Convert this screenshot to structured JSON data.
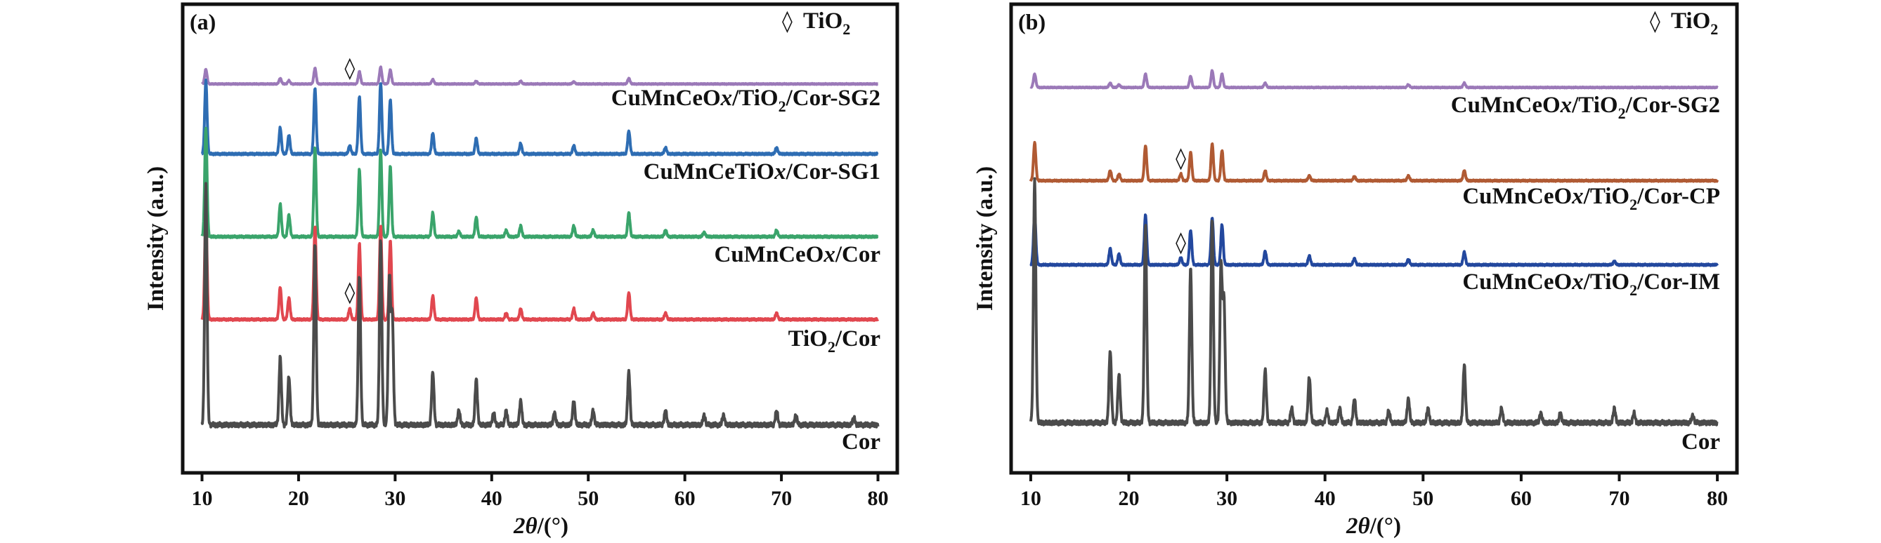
{
  "figure": {
    "xlabel_italic": "2θ",
    "xlabel_unit": "/(°)",
    "ylabel": "Intensity (a.u.)",
    "marker_symbol": "◊",
    "legend_text": "TiO",
    "legend_sub": "2"
  },
  "chart_data": [
    {
      "type": "line",
      "panel": "(a)",
      "xlim": [
        8,
        82
      ],
      "x_ticks": [
        10,
        20,
        30,
        40,
        50,
        60,
        70,
        80
      ],
      "xlabel": "2θ/(°)",
      "ylabel": "Intensity (a.u.)",
      "y_ticks": false,
      "grid": false,
      "legend": {
        "marker": "◊",
        "label": "TiO2",
        "position": "top-right"
      },
      "peaks_2theta": [
        10.4,
        18.1,
        19.0,
        21.7,
        26.3,
        28.5,
        29.4,
        29.7,
        33.9,
        36.6,
        38.4,
        40.2,
        41.5,
        43.0,
        46.5,
        48.5,
        50.5,
        54.2,
        58.0,
        62.0,
        64.0,
        69.5,
        71.5,
        77.5
      ],
      "tio2_markers": [
        {
          "series": "CuMnCeOx/TiO2/Cor-SG2",
          "x": 25.3
        },
        {
          "series": "TiO2/Cor",
          "x": 25.3
        }
      ],
      "series": [
        {
          "name": "CuMnCeOx/TiO2/Cor-SG2",
          "color": "#9b79b8",
          "label_parts": [
            [
              "CuMnCeO",
              ""
            ],
            [
              "x",
              "i"
            ],
            [
              "/TiO",
              ""
            ],
            [
              "2",
              "s"
            ],
            [
              "/Cor-SG2",
              ""
            ]
          ],
          "peaks": [
            {
              "x": 10.4,
              "h": 0.26
            },
            {
              "x": 18.1,
              "h": 0.1
            },
            {
              "x": 19.0,
              "h": 0.06
            },
            {
              "x": 21.7,
              "h": 0.28
            },
            {
              "x": 26.3,
              "h": 0.22
            },
            {
              "x": 28.5,
              "h": 0.3
            },
            {
              "x": 29.5,
              "h": 0.25
            },
            {
              "x": 33.9,
              "h": 0.08
            },
            {
              "x": 38.4,
              "h": 0.05
            },
            {
              "x": 43.0,
              "h": 0.05
            },
            {
              "x": 48.5,
              "h": 0.04
            },
            {
              "x": 54.2,
              "h": 0.1
            }
          ]
        },
        {
          "name": "CuMnCeTiOx/Cor-SG1",
          "color": "#2e6db3",
          "label_parts": [
            [
              "CuMnCeTiO",
              ""
            ],
            [
              "x",
              "i"
            ],
            [
              "/Cor-SG1",
              ""
            ]
          ],
          "peaks": [
            {
              "x": 10.4,
              "h": 0.7
            },
            {
              "x": 18.1,
              "h": 0.25
            },
            {
              "x": 19.0,
              "h": 0.18
            },
            {
              "x": 21.7,
              "h": 0.63
            },
            {
              "x": 25.3,
              "h": 0.08
            },
            {
              "x": 26.3,
              "h": 0.55
            },
            {
              "x": 28.5,
              "h": 0.68
            },
            {
              "x": 29.5,
              "h": 0.52
            },
            {
              "x": 33.9,
              "h": 0.2
            },
            {
              "x": 38.4,
              "h": 0.15
            },
            {
              "x": 43.0,
              "h": 0.1
            },
            {
              "x": 48.5,
              "h": 0.08
            },
            {
              "x": 54.2,
              "h": 0.22
            },
            {
              "x": 58.0,
              "h": 0.06
            },
            {
              "x": 69.5,
              "h": 0.06
            }
          ]
        },
        {
          "name": "CuMnCeOx/Cor",
          "color": "#3aa46b",
          "label_parts": [
            [
              "CuMnCeO",
              ""
            ],
            [
              "x",
              "i"
            ],
            [
              "/Cor",
              ""
            ]
          ],
          "peaks": [
            {
              "x": 10.4,
              "h": 1.0
            },
            {
              "x": 18.1,
              "h": 0.3
            },
            {
              "x": 19.0,
              "h": 0.2
            },
            {
              "x": 21.7,
              "h": 0.82
            },
            {
              "x": 26.3,
              "h": 0.62
            },
            {
              "x": 28.5,
              "h": 0.8
            },
            {
              "x": 29.5,
              "h": 0.65
            },
            {
              "x": 33.9,
              "h": 0.22
            },
            {
              "x": 36.6,
              "h": 0.05
            },
            {
              "x": 38.4,
              "h": 0.18
            },
            {
              "x": 41.5,
              "h": 0.06
            },
            {
              "x": 43.0,
              "h": 0.1
            },
            {
              "x": 48.5,
              "h": 0.1
            },
            {
              "x": 50.5,
              "h": 0.06
            },
            {
              "x": 54.2,
              "h": 0.22
            },
            {
              "x": 58.0,
              "h": 0.06
            },
            {
              "x": 62.0,
              "h": 0.04
            },
            {
              "x": 69.5,
              "h": 0.06
            }
          ]
        },
        {
          "name": "TiO2/Cor",
          "color": "#e1474f",
          "label_parts": [
            [
              "TiO",
              ""
            ],
            [
              "2",
              "s"
            ],
            [
              "/Cor",
              ""
            ]
          ],
          "peaks": [
            {
              "x": 10.4,
              "h": 1.0
            },
            {
              "x": 18.1,
              "h": 0.3
            },
            {
              "x": 19.0,
              "h": 0.2
            },
            {
              "x": 21.7,
              "h": 0.86
            },
            {
              "x": 25.3,
              "h": 0.1
            },
            {
              "x": 26.3,
              "h": 0.7
            },
            {
              "x": 28.5,
              "h": 0.86
            },
            {
              "x": 29.5,
              "h": 0.73
            },
            {
              "x": 33.9,
              "h": 0.22
            },
            {
              "x": 38.4,
              "h": 0.2
            },
            {
              "x": 41.5,
              "h": 0.06
            },
            {
              "x": 43.0,
              "h": 0.1
            },
            {
              "x": 48.5,
              "h": 0.1
            },
            {
              "x": 50.5,
              "h": 0.06
            },
            {
              "x": 54.2,
              "h": 0.25
            },
            {
              "x": 58.0,
              "h": 0.06
            },
            {
              "x": 69.5,
              "h": 0.06
            }
          ]
        },
        {
          "name": "Cor",
          "color": "#4b4b4b",
          "label_parts": [
            [
              "Cor",
              ""
            ]
          ],
          "peaks": [
            {
              "x": 10.4,
              "h": 1.0
            },
            {
              "x": 18.1,
              "h": 0.28
            },
            {
              "x": 19.0,
              "h": 0.2
            },
            {
              "x": 21.7,
              "h": 0.75
            },
            {
              "x": 26.3,
              "h": 0.62
            },
            {
              "x": 28.5,
              "h": 0.77
            },
            {
              "x": 29.4,
              "h": 0.6
            },
            {
              "x": 29.7,
              "h": 0.45
            },
            {
              "x": 33.9,
              "h": 0.22
            },
            {
              "x": 36.6,
              "h": 0.06
            },
            {
              "x": 38.4,
              "h": 0.19
            },
            {
              "x": 40.2,
              "h": 0.05
            },
            {
              "x": 41.5,
              "h": 0.06
            },
            {
              "x": 43.0,
              "h": 0.1
            },
            {
              "x": 46.5,
              "h": 0.05
            },
            {
              "x": 48.5,
              "h": 0.1
            },
            {
              "x": 50.5,
              "h": 0.06
            },
            {
              "x": 54.2,
              "h": 0.22
            },
            {
              "x": 58.0,
              "h": 0.06
            },
            {
              "x": 62.0,
              "h": 0.04
            },
            {
              "x": 64.0,
              "h": 0.04
            },
            {
              "x": 69.5,
              "h": 0.06
            },
            {
              "x": 71.5,
              "h": 0.04
            },
            {
              "x": 77.5,
              "h": 0.03
            }
          ]
        }
      ]
    },
    {
      "type": "line",
      "panel": "(b)",
      "xlim": [
        8,
        82
      ],
      "x_ticks": [
        10,
        20,
        30,
        40,
        50,
        60,
        70,
        80
      ],
      "xlabel": "2θ/(°)",
      "ylabel": "Intensity (a.u.)",
      "y_ticks": false,
      "grid": false,
      "legend": {
        "marker": "◊",
        "label": "TiO2",
        "position": "top-right"
      },
      "tio2_markers": [
        {
          "series": "CuMnCeOx/TiO2/Cor-CP",
          "x": 25.3
        },
        {
          "series": "CuMnCeOx/TiO2/Cor-IM",
          "x": 25.3
        }
      ],
      "series": [
        {
          "name": "CuMnCeOx/TiO2/Cor-SG2",
          "color": "#9b79b8",
          "label_parts": [
            [
              "CuMnCeO",
              ""
            ],
            [
              "x",
              "i"
            ],
            [
              "/TiO",
              ""
            ],
            [
              "2",
              "s"
            ],
            [
              "/Cor-SG2",
              ""
            ]
          ],
          "peaks": [
            {
              "x": 10.4,
              "h": 0.24
            },
            {
              "x": 18.1,
              "h": 0.08
            },
            {
              "x": 19.0,
              "h": 0.05
            },
            {
              "x": 21.7,
              "h": 0.24
            },
            {
              "x": 26.3,
              "h": 0.2
            },
            {
              "x": 28.5,
              "h": 0.3
            },
            {
              "x": 29.5,
              "h": 0.24
            },
            {
              "x": 33.9,
              "h": 0.08
            },
            {
              "x": 48.5,
              "h": 0.05
            },
            {
              "x": 54.2,
              "h": 0.08
            }
          ]
        },
        {
          "name": "CuMnCeOx/TiO2/Cor-CP",
          "color": "#b05a33",
          "label_parts": [
            [
              "CuMnCeO",
              ""
            ],
            [
              "x",
              "i"
            ],
            [
              "/TiO",
              ""
            ],
            [
              "2",
              "s"
            ],
            [
              "/Cor-CP",
              ""
            ]
          ],
          "peaks": [
            {
              "x": 10.4,
              "h": 0.45
            },
            {
              "x": 18.1,
              "h": 0.12
            },
            {
              "x": 19.0,
              "h": 0.08
            },
            {
              "x": 21.7,
              "h": 0.42
            },
            {
              "x": 25.3,
              "h": 0.08
            },
            {
              "x": 26.3,
              "h": 0.34
            },
            {
              "x": 28.5,
              "h": 0.44
            },
            {
              "x": 29.5,
              "h": 0.36
            },
            {
              "x": 33.9,
              "h": 0.12
            },
            {
              "x": 38.4,
              "h": 0.06
            },
            {
              "x": 43.0,
              "h": 0.05
            },
            {
              "x": 48.5,
              "h": 0.06
            },
            {
              "x": 54.2,
              "h": 0.12
            }
          ]
        },
        {
          "name": "CuMnCeOx/TiO2/Cor-IM",
          "color": "#23489e",
          "label_parts": [
            [
              "CuMnCeO",
              ""
            ],
            [
              "x",
              "i"
            ],
            [
              "/TiO",
              ""
            ],
            [
              "2",
              "s"
            ],
            [
              "/Cor-IM",
              ""
            ]
          ],
          "peaks": [
            {
              "x": 10.4,
              "h": 0.55
            },
            {
              "x": 18.1,
              "h": 0.18
            },
            {
              "x": 19.0,
              "h": 0.12
            },
            {
              "x": 21.7,
              "h": 0.55
            },
            {
              "x": 25.3,
              "h": 0.08
            },
            {
              "x": 26.3,
              "h": 0.38
            },
            {
              "x": 28.5,
              "h": 0.52
            },
            {
              "x": 29.5,
              "h": 0.44
            },
            {
              "x": 33.9,
              "h": 0.15
            },
            {
              "x": 38.4,
              "h": 0.1
            },
            {
              "x": 43.0,
              "h": 0.07
            },
            {
              "x": 48.5,
              "h": 0.06
            },
            {
              "x": 54.2,
              "h": 0.14
            },
            {
              "x": 69.5,
              "h": 0.04
            }
          ]
        },
        {
          "name": "Cor",
          "color": "#4b4b4b",
          "label_parts": [
            [
              "Cor",
              ""
            ]
          ],
          "peaks": [
            {
              "x": 10.4,
              "h": 1.0
            },
            {
              "x": 18.1,
              "h": 0.3
            },
            {
              "x": 19.0,
              "h": 0.2
            },
            {
              "x": 21.7,
              "h": 0.82
            },
            {
              "x": 26.3,
              "h": 0.64
            },
            {
              "x": 28.5,
              "h": 0.84
            },
            {
              "x": 29.4,
              "h": 0.65
            },
            {
              "x": 29.7,
              "h": 0.5
            },
            {
              "x": 33.9,
              "h": 0.22
            },
            {
              "x": 36.6,
              "h": 0.06
            },
            {
              "x": 38.4,
              "h": 0.19
            },
            {
              "x": 40.2,
              "h": 0.05
            },
            {
              "x": 41.5,
              "h": 0.06
            },
            {
              "x": 43.0,
              "h": 0.1
            },
            {
              "x": 46.5,
              "h": 0.05
            },
            {
              "x": 48.5,
              "h": 0.1
            },
            {
              "x": 50.5,
              "h": 0.06
            },
            {
              "x": 54.2,
              "h": 0.24
            },
            {
              "x": 58.0,
              "h": 0.06
            },
            {
              "x": 62.0,
              "h": 0.04
            },
            {
              "x": 64.0,
              "h": 0.04
            },
            {
              "x": 69.5,
              "h": 0.06
            },
            {
              "x": 71.5,
              "h": 0.04
            },
            {
              "x": 77.5,
              "h": 0.03
            }
          ]
        }
      ]
    }
  ]
}
